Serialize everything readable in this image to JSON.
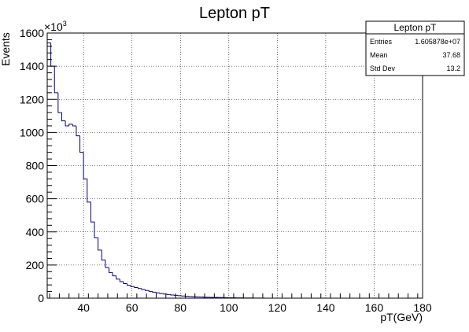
{
  "chart_data": {
    "type": "histogram",
    "title": "Lepton pT",
    "xlabel": "pT(GeV)",
    "ylabel": "Events",
    "y_multiplier": "×10",
    "y_multiplier_exp": "3",
    "xlim": [
      25,
      180
    ],
    "ylim": [
      0,
      1600
    ],
    "x_ticks": [
      "40",
      "60",
      "80",
      "100",
      "120",
      "140",
      "160",
      "180"
    ],
    "y_ticks": [
      "0",
      "200",
      "400",
      "600",
      "800",
      "1000",
      "1200",
      "1400",
      "1600"
    ],
    "grid": true,
    "bin_width": 1.5,
    "bin_start": 25,
    "bin_values": [
      1540,
      1400,
      1240,
      1120,
      1070,
      1040,
      1050,
      1040,
      980,
      880,
      720,
      580,
      460,
      365,
      290,
      230,
      185,
      155,
      135,
      115,
      100,
      88,
      78,
      70,
      64,
      58,
      52,
      46,
      41,
      36,
      32,
      28,
      25,
      22,
      19,
      17,
      15,
      13,
      11,
      10,
      9,
      8,
      7,
      6,
      5.5,
      5,
      4.5,
      4,
      3.5,
      3,
      2.6,
      2.3,
      2,
      1.7,
      1.4,
      1.2,
      1,
      0.8,
      0.6,
      0.4
    ],
    "line_color": "#00007f",
    "stats_box": {
      "title": "Lepton pT",
      "rows": [
        {
          "label": "Entries",
          "value": "1.605878e+07"
        },
        {
          "label": "Mean",
          "value": "37.68"
        },
        {
          "label": "Std Dev",
          "value": "13.2"
        }
      ]
    }
  }
}
